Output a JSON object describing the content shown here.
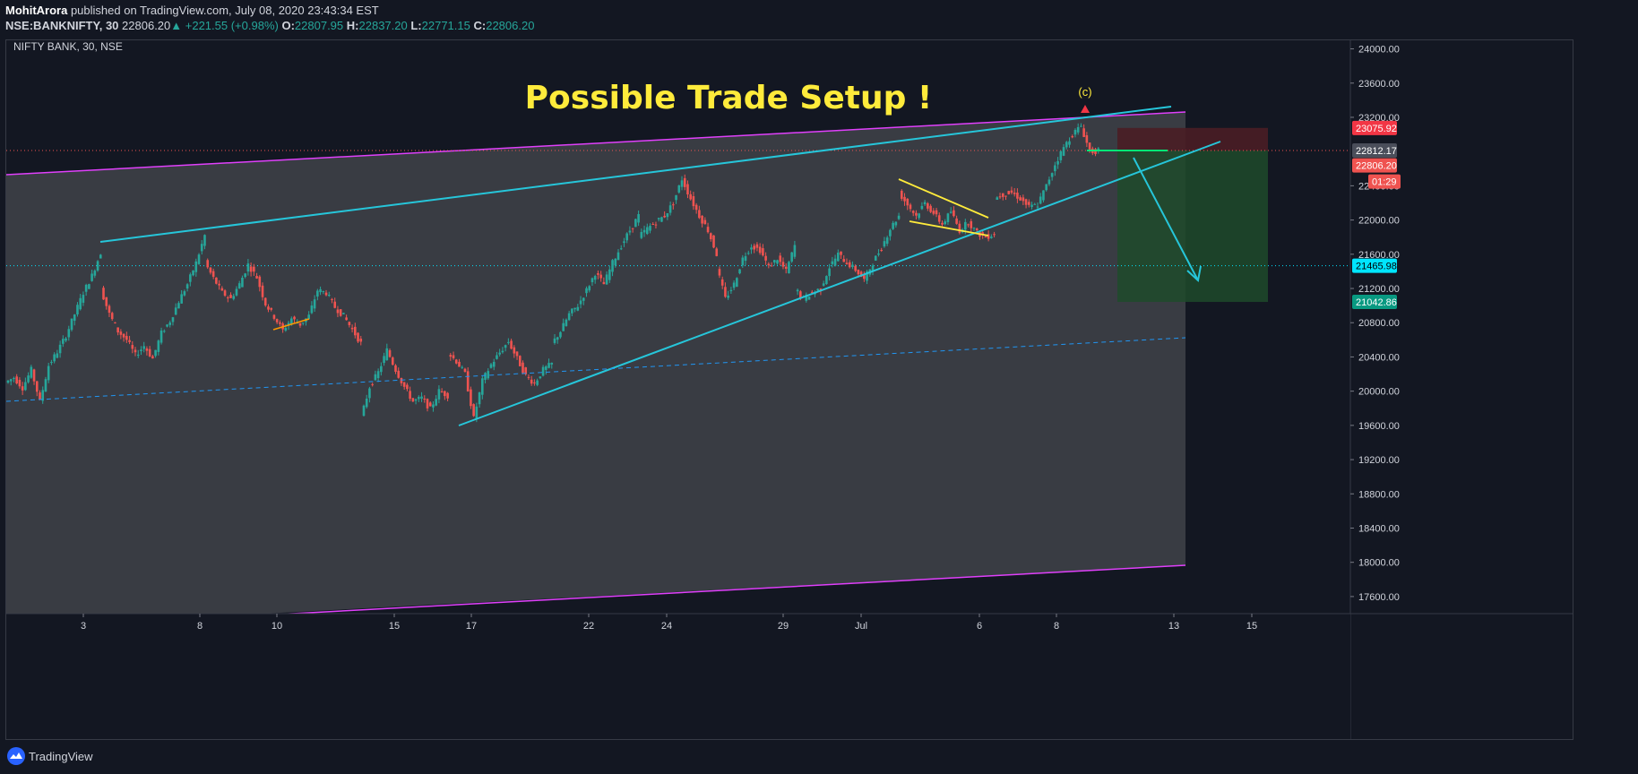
{
  "header": {
    "publisher_line": {
      "author": "MohitArora",
      "text": " published on TradingView.com, July 08, 2020 23:43:34 EST"
    },
    "quote_line": {
      "symbol": "NSE:BANKNIFTY, 30",
      "price": "22806.20",
      "change": "▲ +221.55 (+0.98%)",
      "o_label": "O:",
      "o_value": "22807.95",
      "h_label": "H:",
      "h_value": "22837.20",
      "l_label": "L:",
      "l_value": "22771.15",
      "c_label": "C:",
      "c_value": "22806.20"
    }
  },
  "footer": {
    "brand": "TradingView",
    "logo_icon": "tradingview-logo-icon"
  },
  "chart_data": {
    "type": "candlestick",
    "instrument_label": "NIFTY BANK, 30, NSE",
    "title": "Possible Trade Setup !",
    "wave_label": "(c)",
    "ylim": [
      17400,
      24100
    ],
    "y_ticks": [
      17600,
      18000,
      18400,
      18800,
      19200,
      19600,
      20000,
      20400,
      20800,
      21200,
      21600,
      22000,
      22400,
      23200,
      23600,
      24000
    ],
    "x_tick_labels": [
      "3",
      "8",
      "10",
      "15",
      "17",
      "22",
      "24",
      "29",
      "Jul",
      "6",
      "8",
      "13",
      "15"
    ],
    "price_labels": [
      {
        "value": "23075.92",
        "color": "#f23645"
      },
      {
        "value": "22812.17",
        "color": "#4a4e5a"
      },
      {
        "value": "22806.20",
        "color": "#ef5350"
      },
      {
        "value": "01:29",
        "color": "#ef5350"
      },
      {
        "value": "21465.98",
        "color": "#00e5ff"
      },
      {
        "value": "21042.86",
        "color": "#089981"
      }
    ],
    "trade_setup": {
      "stop": 23075.92,
      "entry": 22812.17,
      "target": 21042.86
    },
    "horizontal_line": 21465.98,
    "price_path": [
      [
        20100,
        20160,
        20040,
        20250,
        19880,
        20300,
        20460,
        20650,
        20900,
        21150,
        21350,
        21620
      ],
      [
        21200,
        20900,
        20700,
        20600,
        20420,
        20530,
        20380,
        20680,
        20820,
        21050,
        21250,
        21500,
        21820
      ],
      [
        21500,
        21320,
        21150,
        21080,
        21250,
        21480,
        21330,
        21020,
        20870,
        20710,
        20850,
        20780,
        20880,
        21180,
        21150,
        20980,
        20880,
        20720,
        20560
      ],
      [
        19680,
        20050,
        20220,
        20480,
        20250,
        20050,
        19880,
        19920,
        19790,
        20000,
        19950
      ],
      [
        20450,
        20350,
        20200,
        19680,
        20120,
        20310,
        20450,
        20580,
        20380,
        20180,
        20090,
        20250,
        20320
      ],
      [
        20550,
        20700,
        20900,
        21000,
        21180,
        21380,
        21250,
        21500,
        21700,
        21880,
        22050
      ],
      [
        21800,
        21900,
        21980,
        22050,
        22200,
        22480,
        22250,
        22050,
        21880,
        21600
      ],
      [
        21450,
        21080,
        21250,
        21550,
        21700,
        21650,
        21450,
        21550,
        21400,
        21700
      ],
      [
        21200,
        21080,
        21150,
        21200,
        21450,
        21600,
        21500,
        21420,
        21300,
        21500,
        21680,
        21900,
        22050
      ],
      [
        22320,
        22180,
        22050,
        22200,
        22080,
        21950,
        22100,
        21880,
        21980,
        21850,
        21800,
        21840
      ],
      [
        22250,
        22300,
        22320,
        22250,
        22150,
        22180,
        22400,
        22650,
        22850,
        23000,
        23100,
        22800,
        22806
      ]
    ]
  }
}
